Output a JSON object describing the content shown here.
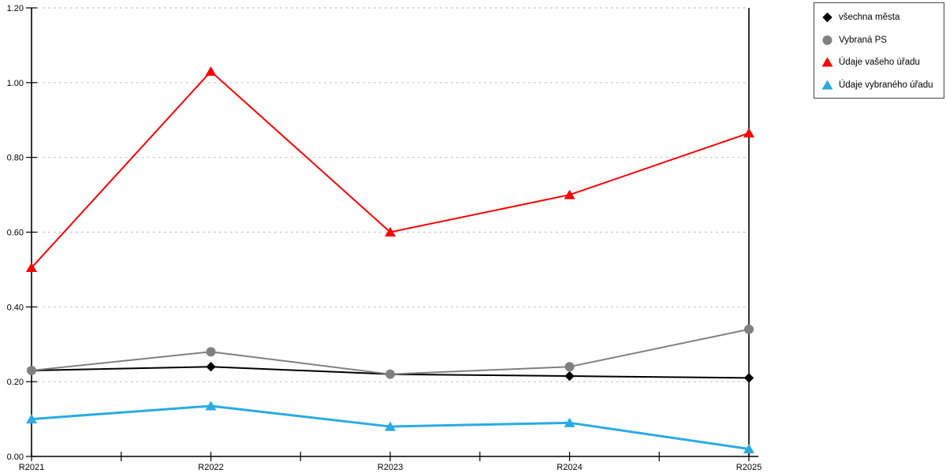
{
  "chart_data": {
    "type": "line",
    "categories": [
      "R2021",
      "R2022",
      "R2023",
      "R2024",
      "R2025"
    ],
    "series": [
      {
        "name": "všechna města",
        "color": "#000000",
        "marker": "diamond",
        "line_width": 2,
        "values": [
          0.23,
          0.24,
          0.22,
          0.215,
          0.21
        ]
      },
      {
        "name": "Vybraná PS",
        "color": "#808080",
        "marker": "circle",
        "line_width": 2,
        "values": [
          0.23,
          0.28,
          0.22,
          0.24,
          0.34
        ]
      },
      {
        "name": "Údaje vašeho úřadu",
        "color": "#ff0000",
        "marker": "triangle",
        "line_width": 2,
        "values": [
          0.505,
          1.03,
          0.6,
          0.7,
          0.865
        ]
      },
      {
        "name": "Údaje vybraného úřadu",
        "color": "#29abe2",
        "marker": "triangle",
        "line_width": 3,
        "values": [
          0.1,
          0.135,
          0.08,
          0.09,
          0.02
        ]
      }
    ],
    "title": "",
    "xlabel": "",
    "ylabel": "",
    "ylim": [
      0,
      1.2
    ],
    "ytick_step": 0.2,
    "ytick_labels": [
      "0.00",
      "0.20",
      "0.40",
      "0.60",
      "0.80",
      "1.00",
      "1.20"
    ],
    "grid": "dotted-horizontal",
    "grid_color": "#c0c0c0",
    "axis_color": "#000000",
    "legend_position": "top-right"
  }
}
